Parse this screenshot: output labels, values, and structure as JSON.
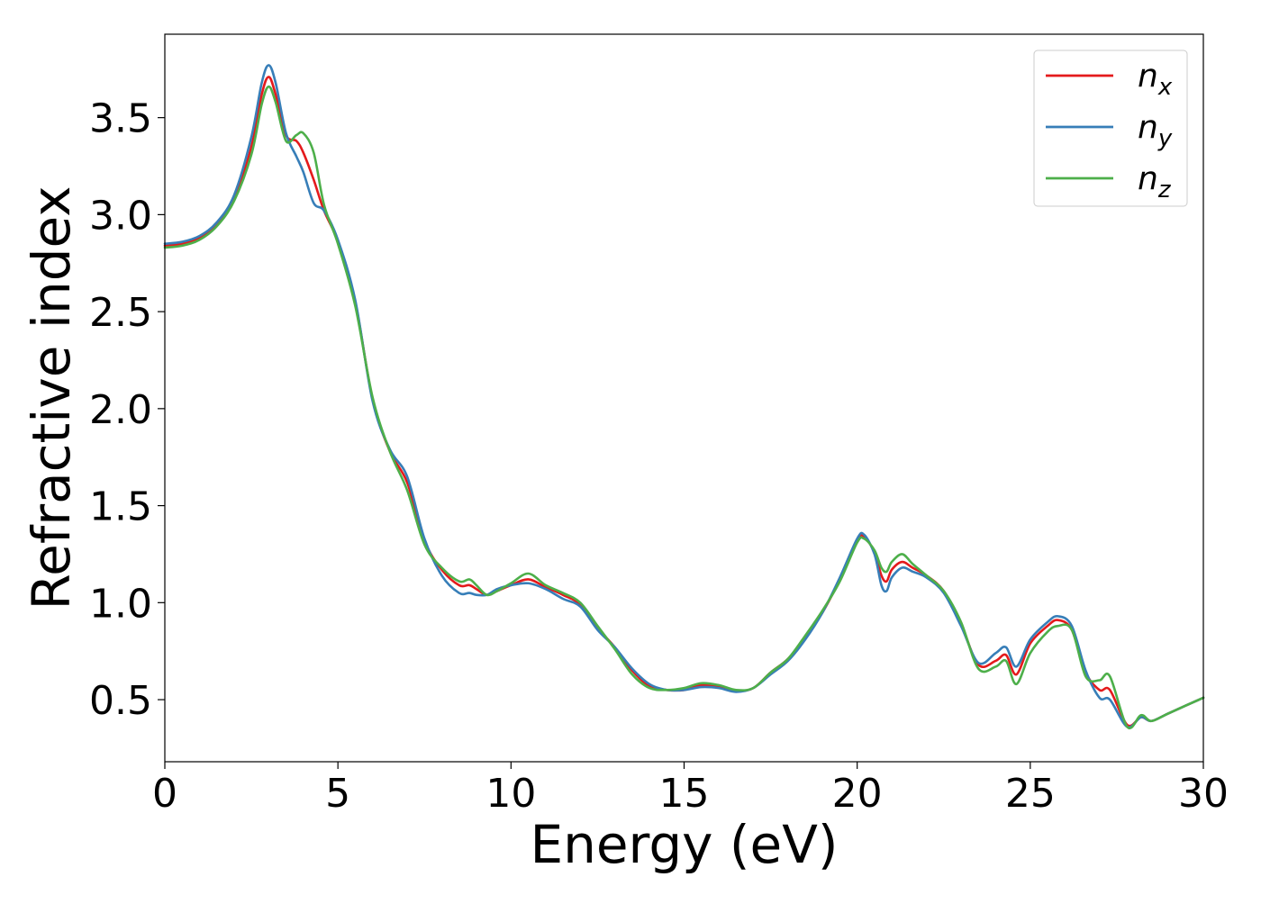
{
  "chart_data": {
    "type": "line",
    "title": "",
    "xlabel": "Energy (eV)",
    "ylabel": "Refractive index",
    "xlim": [
      0,
      30
    ],
    "ylim": [
      0.18,
      3.93
    ],
    "xticks": [
      0,
      5,
      10,
      15,
      20,
      25,
      30
    ],
    "xtick_labels": [
      "0",
      "5",
      "10",
      "15",
      "20",
      "25",
      "30"
    ],
    "yticks": [
      0.5,
      1.0,
      1.5,
      2.0,
      2.5,
      3.0,
      3.5
    ],
    "ytick_labels": [
      "0.5",
      "1.0",
      "1.5",
      "2.0",
      "2.5",
      "3.0",
      "3.5"
    ],
    "grid": false,
    "legend_position": "top-right",
    "series": [
      {
        "name": "n_x",
        "label_base": "n",
        "label_sub": "x",
        "color": "#e41a1c",
        "points": [
          [
            0,
            2.84
          ],
          [
            0.5,
            2.85
          ],
          [
            1,
            2.88
          ],
          [
            1.5,
            2.95
          ],
          [
            2,
            3.08
          ],
          [
            2.5,
            3.35
          ],
          [
            2.8,
            3.62
          ],
          [
            3.0,
            3.71
          ],
          [
            3.2,
            3.62
          ],
          [
            3.5,
            3.41
          ],
          [
            3.8,
            3.38
          ],
          [
            4.0,
            3.32
          ],
          [
            4.3,
            3.18
          ],
          [
            4.6,
            3.02
          ],
          [
            5.0,
            2.86
          ],
          [
            5.5,
            2.55
          ],
          [
            6.0,
            2.05
          ],
          [
            6.5,
            1.78
          ],
          [
            7.0,
            1.62
          ],
          [
            7.5,
            1.32
          ],
          [
            8.0,
            1.17
          ],
          [
            8.5,
            1.09
          ],
          [
            8.8,
            1.09
          ],
          [
            9.0,
            1.07
          ],
          [
            9.3,
            1.04
          ],
          [
            9.6,
            1.06
          ],
          [
            10.0,
            1.09
          ],
          [
            10.5,
            1.12
          ],
          [
            11.0,
            1.08
          ],
          [
            11.5,
            1.04
          ],
          [
            12.0,
            0.99
          ],
          [
            12.5,
            0.87
          ],
          [
            13.0,
            0.77
          ],
          [
            13.5,
            0.65
          ],
          [
            14.0,
            0.57
          ],
          [
            14.5,
            0.55
          ],
          [
            15.0,
            0.55
          ],
          [
            15.5,
            0.575
          ],
          [
            16.0,
            0.565
          ],
          [
            16.5,
            0.545
          ],
          [
            17.0,
            0.56
          ],
          [
            17.5,
            0.64
          ],
          [
            18.0,
            0.71
          ],
          [
            18.5,
            0.82
          ],
          [
            19.0,
            0.95
          ],
          [
            19.5,
            1.12
          ],
          [
            20.0,
            1.32
          ],
          [
            20.2,
            1.34
          ],
          [
            20.5,
            1.26
          ],
          [
            20.7,
            1.14
          ],
          [
            20.85,
            1.11
          ],
          [
            21.0,
            1.17
          ],
          [
            21.3,
            1.21
          ],
          [
            21.6,
            1.18
          ],
          [
            22.0,
            1.14
          ],
          [
            22.5,
            1.06
          ],
          [
            23.0,
            0.89
          ],
          [
            23.5,
            0.68
          ],
          [
            24.0,
            0.7
          ],
          [
            24.3,
            0.73
          ],
          [
            24.6,
            0.63
          ],
          [
            25.0,
            0.79
          ],
          [
            25.5,
            0.88
          ],
          [
            25.8,
            0.91
          ],
          [
            26.2,
            0.86
          ],
          [
            26.6,
            0.64
          ],
          [
            27.0,
            0.55
          ],
          [
            27.3,
            0.55
          ],
          [
            27.8,
            0.37
          ],
          [
            28.2,
            0.41
          ],
          [
            28.5,
            0.39
          ],
          [
            29.0,
            0.43
          ],
          [
            30.0,
            0.51
          ]
        ]
      },
      {
        "name": "n_y",
        "label_base": "n",
        "label_sub": "y",
        "color": "#377eb8",
        "points": [
          [
            0,
            2.85
          ],
          [
            0.5,
            2.86
          ],
          [
            1,
            2.89
          ],
          [
            1.5,
            2.96
          ],
          [
            2,
            3.1
          ],
          [
            2.5,
            3.4
          ],
          [
            2.8,
            3.68
          ],
          [
            3.0,
            3.77
          ],
          [
            3.2,
            3.68
          ],
          [
            3.5,
            3.42
          ],
          [
            3.8,
            3.3
          ],
          [
            4.0,
            3.22
          ],
          [
            4.3,
            3.06
          ],
          [
            4.6,
            3.02
          ],
          [
            5.0,
            2.87
          ],
          [
            5.5,
            2.56
          ],
          [
            6.0,
            2.04
          ],
          [
            6.5,
            1.79
          ],
          [
            7.0,
            1.65
          ],
          [
            7.5,
            1.33
          ],
          [
            8.0,
            1.14
          ],
          [
            8.5,
            1.05
          ],
          [
            8.8,
            1.05
          ],
          [
            9.0,
            1.04
          ],
          [
            9.3,
            1.04
          ],
          [
            9.6,
            1.07
          ],
          [
            10.0,
            1.09
          ],
          [
            10.5,
            1.1
          ],
          [
            11.0,
            1.07
          ],
          [
            11.5,
            1.02
          ],
          [
            12.0,
            0.98
          ],
          [
            12.5,
            0.86
          ],
          [
            13.0,
            0.77
          ],
          [
            13.5,
            0.66
          ],
          [
            14.0,
            0.58
          ],
          [
            14.5,
            0.55
          ],
          [
            15.0,
            0.55
          ],
          [
            15.5,
            0.565
          ],
          [
            16.0,
            0.56
          ],
          [
            16.5,
            0.54
          ],
          [
            17.0,
            0.56
          ],
          [
            17.5,
            0.63
          ],
          [
            18.0,
            0.7
          ],
          [
            18.5,
            0.81
          ],
          [
            19.0,
            0.95
          ],
          [
            19.5,
            1.13
          ],
          [
            20.0,
            1.33
          ],
          [
            20.2,
            1.35
          ],
          [
            20.5,
            1.25
          ],
          [
            20.7,
            1.09
          ],
          [
            20.85,
            1.06
          ],
          [
            21.0,
            1.13
          ],
          [
            21.3,
            1.18
          ],
          [
            21.6,
            1.16
          ],
          [
            22.0,
            1.13
          ],
          [
            22.5,
            1.05
          ],
          [
            23.0,
            0.88
          ],
          [
            23.5,
            0.69
          ],
          [
            24.0,
            0.74
          ],
          [
            24.3,
            0.77
          ],
          [
            24.6,
            0.67
          ],
          [
            25.0,
            0.81
          ],
          [
            25.5,
            0.9
          ],
          [
            25.8,
            0.93
          ],
          [
            26.2,
            0.88
          ],
          [
            26.6,
            0.65
          ],
          [
            27.0,
            0.51
          ],
          [
            27.3,
            0.5
          ],
          [
            27.8,
            0.36
          ],
          [
            28.2,
            0.41
          ],
          [
            28.5,
            0.39
          ],
          [
            29.0,
            0.43
          ],
          [
            30.0,
            0.51
          ]
        ]
      },
      {
        "name": "n_z",
        "label_base": "n",
        "label_sub": "z",
        "color": "#4daf4a",
        "points": [
          [
            0,
            2.83
          ],
          [
            0.5,
            2.84
          ],
          [
            1,
            2.87
          ],
          [
            1.5,
            2.94
          ],
          [
            2,
            3.07
          ],
          [
            2.5,
            3.31
          ],
          [
            2.8,
            3.57
          ],
          [
            3.0,
            3.66
          ],
          [
            3.2,
            3.58
          ],
          [
            3.5,
            3.38
          ],
          [
            3.8,
            3.41
          ],
          [
            4.0,
            3.42
          ],
          [
            4.3,
            3.32
          ],
          [
            4.6,
            3.05
          ],
          [
            5.0,
            2.85
          ],
          [
            5.5,
            2.53
          ],
          [
            6.0,
            2.06
          ],
          [
            6.5,
            1.78
          ],
          [
            7.0,
            1.58
          ],
          [
            7.5,
            1.3
          ],
          [
            8.0,
            1.18
          ],
          [
            8.5,
            1.11
          ],
          [
            8.8,
            1.12
          ],
          [
            9.0,
            1.09
          ],
          [
            9.3,
            1.04
          ],
          [
            9.6,
            1.06
          ],
          [
            10.0,
            1.1
          ],
          [
            10.5,
            1.15
          ],
          [
            11.0,
            1.09
          ],
          [
            11.5,
            1.05
          ],
          [
            12.0,
            1.0
          ],
          [
            12.5,
            0.88
          ],
          [
            13.0,
            0.76
          ],
          [
            13.5,
            0.63
          ],
          [
            14.0,
            0.56
          ],
          [
            14.5,
            0.55
          ],
          [
            15.0,
            0.56
          ],
          [
            15.5,
            0.585
          ],
          [
            16.0,
            0.575
          ],
          [
            16.5,
            0.55
          ],
          [
            17.0,
            0.56
          ],
          [
            17.5,
            0.64
          ],
          [
            18.0,
            0.71
          ],
          [
            18.5,
            0.83
          ],
          [
            19.0,
            0.96
          ],
          [
            19.5,
            1.11
          ],
          [
            20.0,
            1.31
          ],
          [
            20.2,
            1.33
          ],
          [
            20.5,
            1.27
          ],
          [
            20.7,
            1.18
          ],
          [
            20.85,
            1.16
          ],
          [
            21.0,
            1.21
          ],
          [
            21.3,
            1.25
          ],
          [
            21.6,
            1.2
          ],
          [
            22.0,
            1.14
          ],
          [
            22.5,
            1.06
          ],
          [
            23.0,
            0.9
          ],
          [
            23.5,
            0.66
          ],
          [
            24.0,
            0.67
          ],
          [
            24.3,
            0.7
          ],
          [
            24.6,
            0.58
          ],
          [
            25.0,
            0.74
          ],
          [
            25.5,
            0.85
          ],
          [
            25.8,
            0.88
          ],
          [
            26.2,
            0.86
          ],
          [
            26.6,
            0.62
          ],
          [
            27.0,
            0.6
          ],
          [
            27.3,
            0.62
          ],
          [
            27.8,
            0.36
          ],
          [
            28.2,
            0.42
          ],
          [
            28.5,
            0.39
          ],
          [
            29.0,
            0.43
          ],
          [
            30.0,
            0.51
          ]
        ]
      }
    ]
  }
}
